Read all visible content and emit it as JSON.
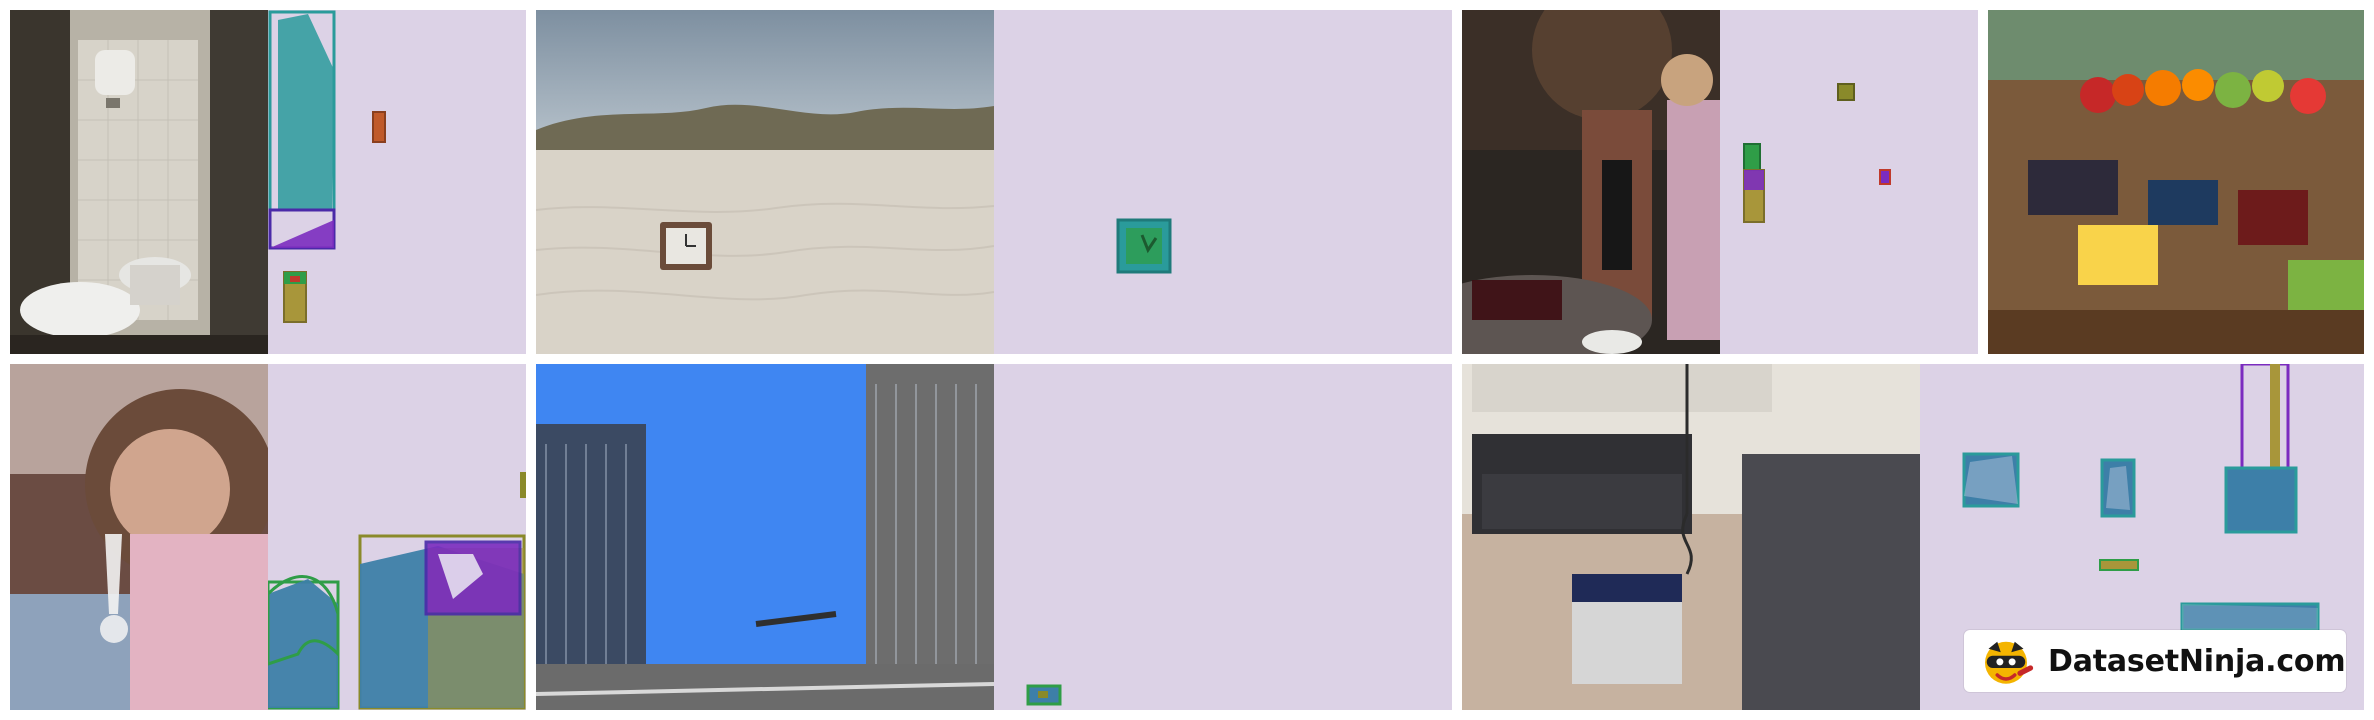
{
  "watermark": {
    "text": "DatasetNinja.com",
    "logo_icon": "ninja-cat-logo-icon"
  },
  "colors": {
    "mask_background": "#dcd2e6",
    "teal": "#2a9b9b",
    "blue": "#3a5fbf",
    "indigo": "#4a2aa8",
    "purple": "#7b2cbf",
    "olive": "#8a8a2a",
    "orange": "#c05a2a",
    "green": "#2f9d47",
    "steel": "#3d7fa8",
    "khaki": "#a8963a"
  },
  "panels": [
    {
      "id": "p1",
      "photo_subject": "small bathroom with sink and toilet",
      "mask_subject": "instance masks"
    },
    {
      "id": "p2",
      "photo_subject": "clock on sandy beach dunes",
      "mask_subject": "instance masks"
    },
    {
      "id": "p3",
      "photo_subject": "people at a wine tasting",
      "mask_subject": "instance masks"
    },
    {
      "id": "p4",
      "photo_subject": "fruit market stall",
      "mask_subject": "instance masks"
    },
    {
      "id": "p5",
      "photo_subject": "woman holding a wine glass",
      "mask_subject": "instance masks"
    },
    {
      "id": "p6",
      "photo_subject": "city street with tall buildings",
      "mask_subject": "instance masks"
    },
    {
      "id": "p7",
      "photo_subject": "living room with two gray sofas",
      "mask_subject": "instance masks"
    }
  ]
}
